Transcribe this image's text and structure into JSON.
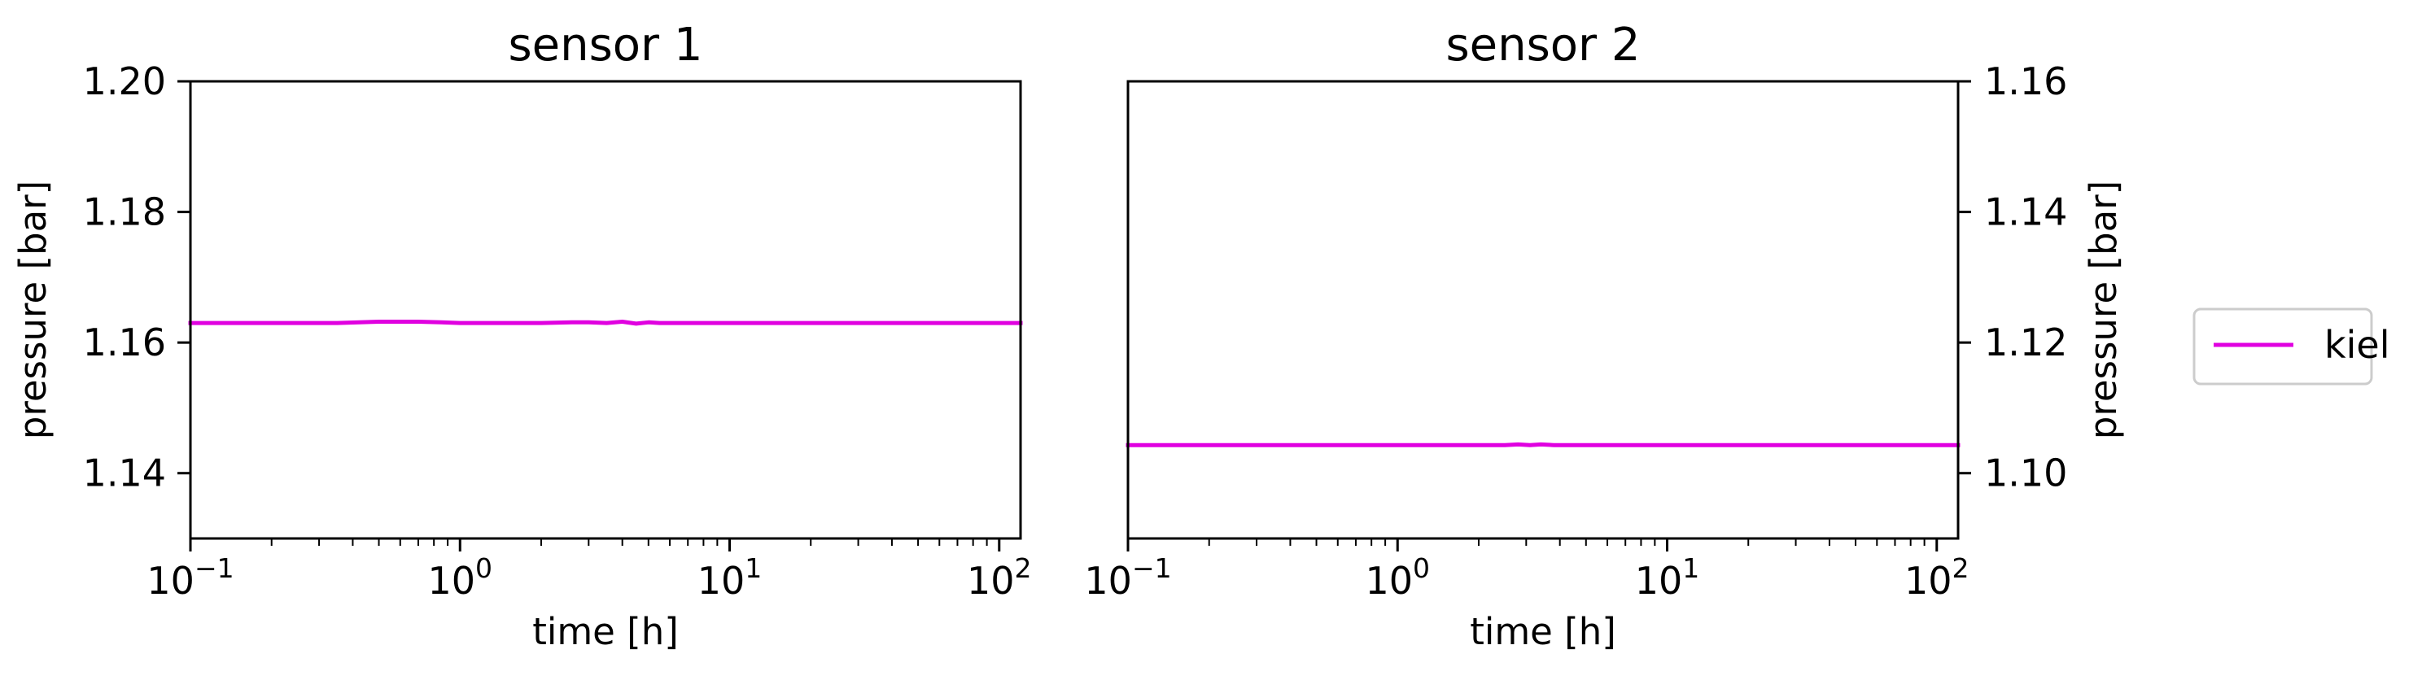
{
  "chart_data": [
    {
      "type": "line",
      "title": "sensor 1",
      "xlabel": "time [h]",
      "ylabel": "pressure [bar]",
      "xscale": "log",
      "xlim": [
        0.1,
        120
      ],
      "ylim": [
        1.13,
        1.2
      ],
      "yaxis_side": "left",
      "x_ticks": [
        {
          "value": 0.1,
          "base": "10",
          "exp": "−1"
        },
        {
          "value": 1,
          "base": "10",
          "exp": "0"
        },
        {
          "value": 10,
          "base": "10",
          "exp": "1"
        },
        {
          "value": 100,
          "base": "10",
          "exp": "2"
        }
      ],
      "y_ticks": [
        {
          "value": 1.14,
          "label": "1.14"
        },
        {
          "value": 1.16,
          "label": "1.16"
        },
        {
          "value": 1.18,
          "label": "1.18"
        },
        {
          "value": 1.2,
          "label": "1.20"
        }
      ],
      "series": [
        {
          "name": "kiel",
          "color": "#e000e0",
          "x": [
            0.1,
            0.2,
            0.35,
            0.5,
            0.7,
            0.85,
            1.0,
            1.5,
            2.0,
            2.6,
            3.0,
            3.5,
            4.0,
            4.5,
            5.0,
            5.5,
            7.0,
            10,
            20,
            50,
            120
          ],
          "y": [
            1.163,
            1.163,
            1.163,
            1.1632,
            1.1632,
            1.1631,
            1.163,
            1.163,
            1.163,
            1.1631,
            1.1631,
            1.163,
            1.1632,
            1.1629,
            1.1631,
            1.163,
            1.163,
            1.163,
            1.163,
            1.163,
            1.163
          ]
        }
      ]
    },
    {
      "type": "line",
      "title": "sensor 2",
      "xlabel": "time [h]",
      "ylabel": "pressure [bar]",
      "xscale": "log",
      "xlim": [
        0.1,
        120
      ],
      "ylim": [
        1.09,
        1.16
      ],
      "yaxis_side": "right",
      "x_ticks": [
        {
          "value": 0.1,
          "base": "10",
          "exp": "−1"
        },
        {
          "value": 1,
          "base": "10",
          "exp": "0"
        },
        {
          "value": 10,
          "base": "10",
          "exp": "1"
        },
        {
          "value": 100,
          "base": "10",
          "exp": "2"
        }
      ],
      "y_ticks": [
        {
          "value": 1.1,
          "label": "1.10"
        },
        {
          "value": 1.12,
          "label": "1.12"
        },
        {
          "value": 1.14,
          "label": "1.14"
        },
        {
          "value": 1.16,
          "label": "1.16"
        }
      ],
      "series": [
        {
          "name": "kiel",
          "color": "#e000e0",
          "x": [
            0.1,
            0.5,
            1.0,
            2.0,
            2.5,
            2.8,
            3.1,
            3.4,
            3.8,
            4.5,
            10,
            50,
            120
          ],
          "y": [
            1.1043,
            1.1043,
            1.1043,
            1.1043,
            1.1043,
            1.1044,
            1.1043,
            1.1044,
            1.1043,
            1.1043,
            1.1043,
            1.1043,
            1.1043
          ]
        }
      ]
    }
  ],
  "legend": {
    "placement": "right",
    "entries": [
      {
        "label": "kiel",
        "color": "#e000e0"
      }
    ]
  }
}
